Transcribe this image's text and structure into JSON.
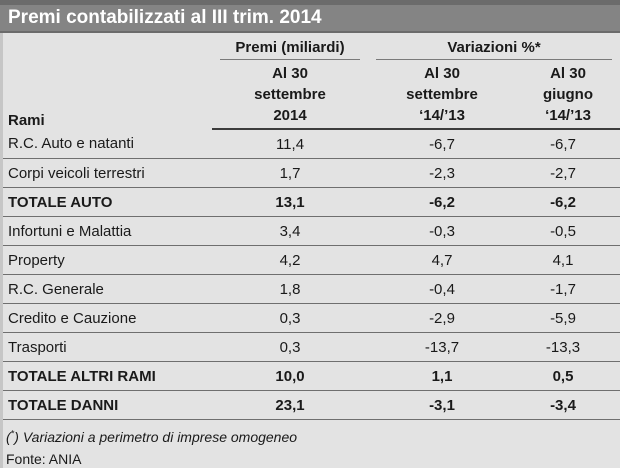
{
  "title": "Premi contabilizzati al III trim. 2014",
  "chart_data": {
    "type": "table",
    "title": "Premi contabilizzati al III trim. 2014",
    "header": {
      "rami_label": "Rami",
      "groups": [
        "Premi (miliardi)",
        "Variazioni %*"
      ],
      "sub": [
        "Al 30\nsettembre\n2014",
        "Al 30\nsettembre\n‘14/’13",
        "Al 30\ngiugno\n‘14/’13"
      ]
    },
    "rows": [
      {
        "rami": "R.C. Auto e natanti",
        "premi": "11,4",
        "var_settembre": "-6,7",
        "var_giugno": "-6,7",
        "is_total": false
      },
      {
        "rami": "Corpi veicoli terrestri",
        "premi": "1,7",
        "var_settembre": "-2,3",
        "var_giugno": "-2,7",
        "is_total": false
      },
      {
        "rami": "TOTALE AUTO",
        "premi": "13,1",
        "var_settembre": "-6,2",
        "var_giugno": "-6,2",
        "is_total": true
      },
      {
        "rami": "Infortuni e Malattia",
        "premi": "3,4",
        "var_settembre": "-0,3",
        "var_giugno": "-0,5",
        "is_total": false
      },
      {
        "rami": "Property",
        "premi": "4,2",
        "var_settembre": "4,7",
        "var_giugno": "4,1",
        "is_total": false
      },
      {
        "rami": "R.C. Generale",
        "premi": "1,8",
        "var_settembre": "-0,4",
        "var_giugno": "-1,7",
        "is_total": false
      },
      {
        "rami": "Credito e Cauzione",
        "premi": "0,3",
        "var_settembre": "-2,9",
        "var_giugno": "-5,9",
        "is_total": false
      },
      {
        "rami": "Trasporti",
        "premi": "0,3",
        "var_settembre": "-13,7",
        "var_giugno": "-13,3",
        "is_total": false
      },
      {
        "rami": "TOTALE ALTRI RAMI",
        "premi": "10,0",
        "var_settembre": "1,1",
        "var_giugno": "0,5",
        "is_total": true
      },
      {
        "rami": "TOTALE DANNI",
        "premi": "23,1",
        "var_settembre": "-3,1",
        "var_giugno": "-3,4",
        "is_total": true
      }
    ],
    "footnote": {
      "open": "(",
      "star": "*",
      "close": ")",
      "text": "Variazioni a perimetro di imprese omogeneo"
    },
    "source": "Fonte: ANIA"
  },
  "colors": {
    "title_bar_bg": "#848484",
    "title_bar_edge": "#6b6b6b",
    "title_text": "#ffffff",
    "page_bg": "#e3e3e3",
    "text": "#1a1a1a",
    "row_line": "#6f6f6f",
    "header_line": "#3c3c3c"
  }
}
